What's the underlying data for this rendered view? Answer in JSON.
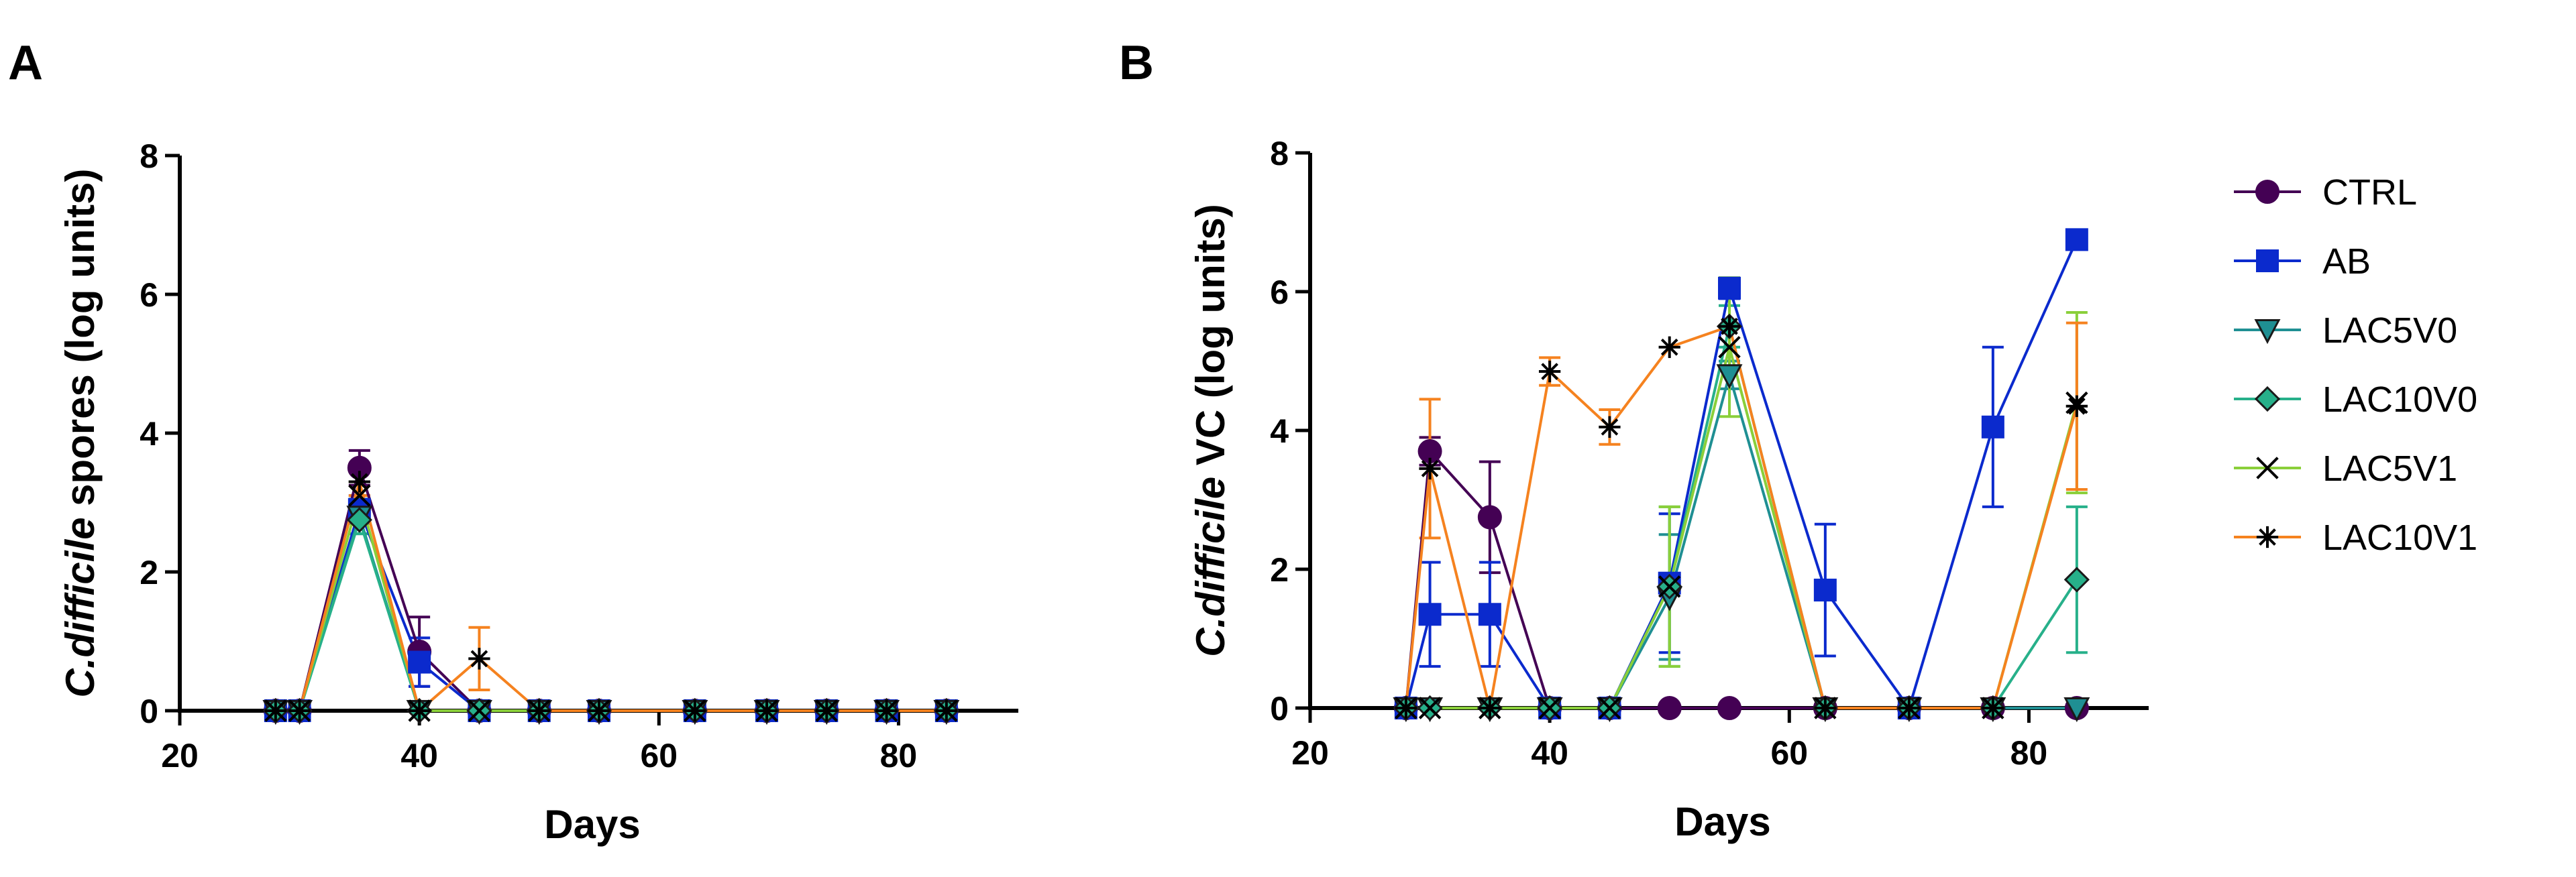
{
  "figure": {
    "panel_a": "A",
    "panel_b": "B"
  },
  "colors": {
    "CTRL": "#440154",
    "AB": "#0b2acd",
    "LAC5V0": "#1f8f93",
    "LAC10V0": "#27b08a",
    "LAC5V1": "#8acf3a",
    "LAC10V1": "#f5821f"
  },
  "chart_data": [
    {
      "type": "line",
      "panel": "A",
      "title": "",
      "xlabel": "Days",
      "ylabel_italic": "C.difficile",
      "ylabel_rest": " spores (log units)",
      "xlim": [
        20,
        90
      ],
      "ylim": [
        0,
        8
      ],
      "xticks": [
        20,
        40,
        60,
        80
      ],
      "yticks": [
        0,
        2,
        4,
        6,
        8
      ],
      "grid": false,
      "series": [
        {
          "name": "CTRL",
          "marker": "circle",
          "x": [
            28,
            30,
            35,
            40,
            45,
            50,
            55,
            63,
            69,
            74,
            79,
            84
          ],
          "y": [
            0,
            0,
            3.5,
            0.85,
            0,
            0,
            0,
            0,
            0,
            0,
            0,
            0
          ],
          "err": [
            0,
            0,
            0.25,
            0.5,
            0,
            0,
            0,
            0,
            0,
            0,
            0,
            0
          ]
        },
        {
          "name": "AB",
          "marker": "square",
          "x": [
            28,
            30,
            35,
            40,
            45,
            50,
            55,
            63,
            69,
            74,
            79,
            84
          ],
          "y": [
            0,
            0,
            2.9,
            0.7,
            0,
            0,
            0,
            0,
            0,
            0,
            0,
            0
          ],
          "err": [
            0,
            0,
            0.2,
            0.35,
            0,
            0,
            0,
            0,
            0,
            0,
            0,
            0
          ]
        },
        {
          "name": "LAC5V0",
          "marker": "triangle-down",
          "x": [
            28,
            30,
            35,
            40,
            45,
            50,
            55,
            63,
            69,
            74,
            79,
            84
          ],
          "y": [
            0,
            0,
            2.8,
            0,
            0,
            0,
            0,
            0,
            0,
            0,
            0,
            0
          ],
          "err": [
            0,
            0,
            0.25,
            0,
            0,
            0,
            0,
            0,
            0,
            0,
            0,
            0
          ]
        },
        {
          "name": "LAC10V0",
          "marker": "diamond",
          "x": [
            28,
            30,
            35,
            40,
            45,
            50,
            55,
            63,
            69,
            74,
            79,
            84
          ],
          "y": [
            0,
            0,
            2.75,
            0,
            0,
            0,
            0,
            0,
            0,
            0,
            0,
            0
          ],
          "err": [
            0,
            0,
            0.2,
            0,
            0,
            0,
            0,
            0,
            0,
            0,
            0,
            0
          ]
        },
        {
          "name": "LAC5V1",
          "marker": "x",
          "x": [
            28,
            30,
            35,
            40,
            45,
            50,
            55,
            63,
            69,
            74,
            79,
            84
          ],
          "y": [
            0,
            0,
            3.1,
            0,
            0,
            0,
            0,
            0,
            0,
            0,
            0,
            0
          ],
          "err": [
            0,
            0,
            0.2,
            0,
            0,
            0,
            0,
            0,
            0,
            0,
            0,
            0
          ]
        },
        {
          "name": "LAC10V1",
          "marker": "asterisk",
          "x": [
            28,
            30,
            35,
            40,
            45,
            50,
            55,
            63,
            69,
            74,
            79,
            84
          ],
          "y": [
            0,
            0,
            3.3,
            0,
            0.75,
            0,
            0,
            0,
            0,
            0,
            0,
            0
          ],
          "err": [
            0,
            0,
            0.2,
            0,
            0.45,
            0,
            0,
            0,
            0,
            0,
            0,
            0
          ]
        }
      ]
    },
    {
      "type": "line",
      "panel": "B",
      "title": "",
      "xlabel": "Days",
      "ylabel_italic": "C.difficile",
      "ylabel_rest": " VC (log units)",
      "xlim": [
        20,
        90
      ],
      "ylim": [
        0,
        8
      ],
      "xticks": [
        20,
        40,
        60,
        80
      ],
      "yticks": [
        0,
        2,
        4,
        6,
        8
      ],
      "grid": false,
      "series": [
        {
          "name": "CTRL",
          "marker": "circle",
          "x": [
            28,
            30,
            35,
            40,
            45,
            50,
            55,
            63,
            70,
            77,
            84
          ],
          "y": [
            0,
            3.7,
            2.75,
            0,
            0,
            0,
            0,
            0,
            0,
            0,
            0
          ],
          "err": [
            0,
            0.2,
            0.8,
            0,
            0,
            0,
            0,
            0,
            0,
            0,
            0
          ]
        },
        {
          "name": "AB",
          "marker": "square",
          "x": [
            28,
            30,
            35,
            40,
            45,
            50,
            55,
            63,
            70,
            77,
            84
          ],
          "y": [
            0,
            1.35,
            1.35,
            0,
            0,
            1.8,
            6.05,
            1.7,
            0,
            4.05,
            6.75
          ],
          "err": [
            0,
            0.75,
            0.75,
            0,
            0,
            1.0,
            0.15,
            0.95,
            0,
            1.15,
            0
          ]
        },
        {
          "name": "LAC5V0",
          "marker": "triangle-down",
          "x": [
            28,
            30,
            35,
            40,
            45,
            50,
            55,
            63,
            70,
            77,
            84
          ],
          "y": [
            0,
            0,
            0,
            0,
            0,
            1.6,
            4.8,
            0,
            0,
            0,
            0
          ],
          "err": [
            0,
            0,
            0,
            0,
            0,
            0.9,
            0.2,
            0,
            0,
            0,
            0
          ]
        },
        {
          "name": "LAC10V0",
          "marker": "diamond",
          "x": [
            28,
            30,
            35,
            40,
            45,
            50,
            55,
            63,
            70,
            77,
            84
          ],
          "y": [
            0,
            0,
            0,
            0,
            0,
            1.75,
            5.5,
            0,
            0,
            0,
            1.85
          ],
          "err": [
            0,
            0,
            0,
            0,
            0,
            1.15,
            0.3,
            0,
            0,
            0,
            1.05
          ]
        },
        {
          "name": "LAC5V1",
          "marker": "x",
          "x": [
            28,
            30,
            35,
            40,
            45,
            50,
            55,
            63,
            70,
            77,
            84
          ],
          "y": [
            0,
            0,
            0,
            0,
            0,
            1.75,
            5.2,
            0,
            0,
            0,
            4.4
          ],
          "err": [
            0,
            0,
            0,
            0,
            0,
            1.15,
            1.0,
            0,
            0,
            0,
            1.3
          ]
        },
        {
          "name": "LAC10V1",
          "marker": "asterisk",
          "x": [
            28,
            30,
            35,
            40,
            45,
            50,
            55,
            63,
            70,
            77,
            84
          ],
          "y": [
            0,
            3.45,
            0,
            4.85,
            4.05,
            5.2,
            5.5,
            0,
            0,
            0,
            4.35
          ],
          "err": [
            0,
            1.0,
            0,
            0.2,
            0.25,
            0,
            0,
            0,
            0,
            0,
            1.2
          ]
        }
      ]
    }
  ],
  "legend": {
    "placement": "right",
    "items": [
      {
        "key": "CTRL",
        "label": "CTRL",
        "marker": "circle"
      },
      {
        "key": "AB",
        "label": "AB",
        "marker": "square"
      },
      {
        "key": "LAC5V0",
        "label": "LAC5V0",
        "marker": "triangle-down"
      },
      {
        "key": "LAC10V0",
        "label": "LAC10V0",
        "marker": "diamond"
      },
      {
        "key": "LAC5V1",
        "label": "LAC5V1",
        "marker": "x"
      },
      {
        "key": "LAC10V1",
        "label": "LAC10V1",
        "marker": "asterisk"
      }
    ]
  }
}
